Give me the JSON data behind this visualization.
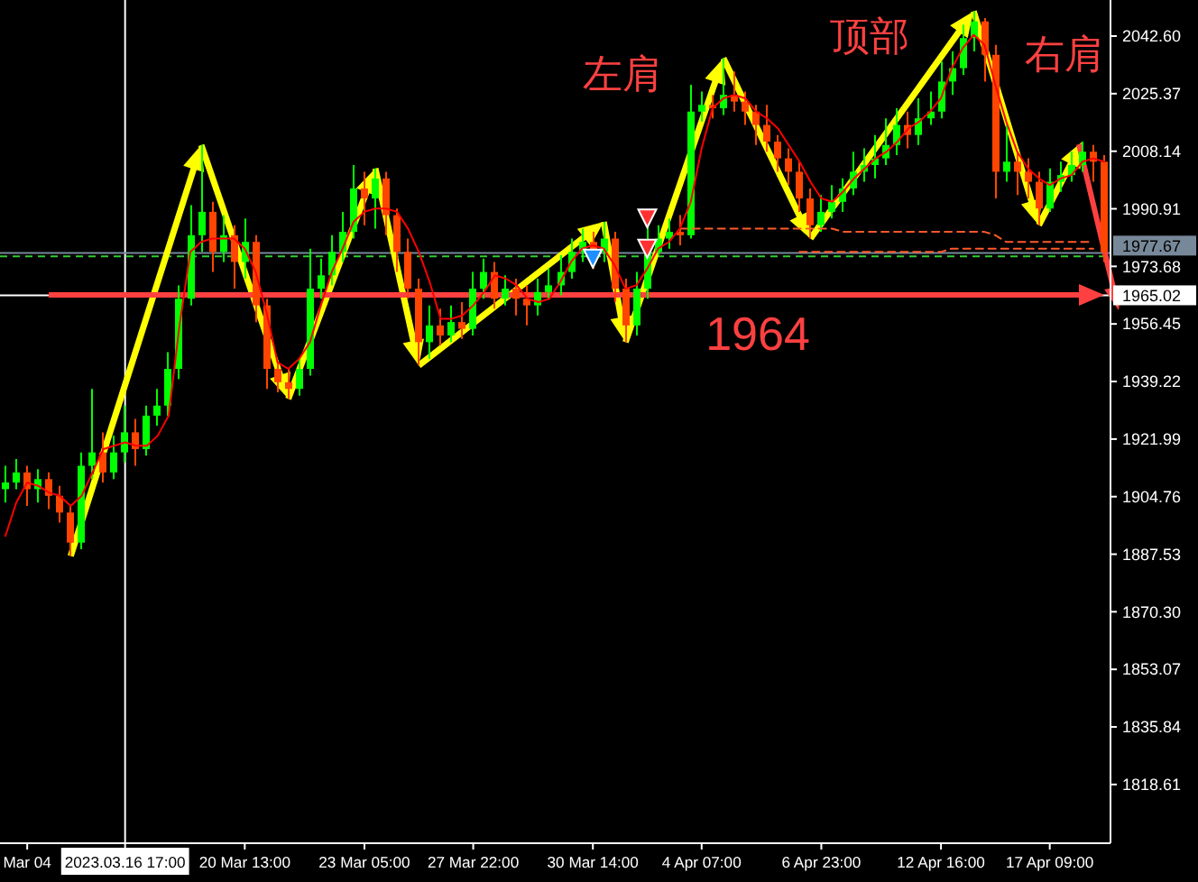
{
  "chart_data": {
    "type": "candlestick",
    "categories": [
      null,
      null,
      "Mar 04",
      null,
      null,
      null,
      null,
      null,
      null,
      null,
      null,
      "2023.03.16 17:00",
      null,
      null,
      null,
      null,
      null,
      null,
      null,
      null,
      null,
      null,
      "20 Mar 13:00",
      null,
      null,
      null,
      null,
      null,
      null,
      null,
      null,
      null,
      null,
      "23 Mar 05:00",
      null,
      null,
      null,
      null,
      null,
      null,
      null,
      null,
      null,
      "27 Mar 22:00",
      null,
      null,
      null,
      null,
      null,
      null,
      null,
      null,
      null,
      null,
      "30 Mar 14:00",
      null,
      null,
      null,
      null,
      null,
      null,
      null,
      null,
      null,
      "4 Apr 07:00",
      null,
      null,
      null,
      null,
      null,
      null,
      null,
      null,
      null,
      null,
      "6 Apr 23:00",
      null,
      null,
      null,
      null,
      null,
      null,
      null,
      null,
      null,
      null,
      "12 Apr 16:00",
      null,
      null,
      null,
      null,
      null,
      null,
      null,
      null,
      null,
      "17 Apr 09:00",
      null,
      null,
      null,
      null,
      null
    ],
    "ohlc": [
      [
        1907,
        1914,
        1903,
        1909
      ],
      [
        1909,
        1916,
        1907,
        1912
      ],
      [
        1912,
        1914,
        1902,
        1907
      ],
      [
        1907,
        1913,
        1903,
        1910
      ],
      [
        1910,
        1912,
        1901,
        1905
      ],
      [
        1905,
        1908,
        1897,
        1900
      ],
      [
        1900,
        1902,
        1887,
        1891
      ],
      [
        1891,
        1918,
        1889,
        1914
      ],
      [
        1914,
        1937,
        1910,
        1918
      ],
      [
        1918,
        1924,
        1909,
        1912
      ],
      [
        1912,
        1923,
        1910,
        1918
      ],
      [
        1918,
        1932,
        1915,
        1924
      ],
      [
        1924,
        1928,
        1914,
        1919
      ],
      [
        1919,
        1932,
        1917,
        1929
      ],
      [
        1929,
        1937,
        1926,
        1932
      ],
      [
        1932,
        1948,
        1929,
        1943
      ],
      [
        1943,
        1968,
        1940,
        1964
      ],
      [
        1964,
        1992,
        1962,
        1983
      ],
      [
        1983,
        2010,
        1978,
        1990
      ],
      [
        1990,
        1993,
        1972,
        1978
      ],
      [
        1978,
        1989,
        1975,
        1983
      ],
      [
        1983,
        1986,
        1967,
        1975
      ],
      [
        1975,
        1988,
        1970,
        1981
      ],
      [
        1981,
        1983,
        1957,
        1962
      ],
      [
        1962,
        1964,
        1937,
        1943
      ],
      [
        1943,
        1945,
        1936,
        1939
      ],
      [
        1939,
        1943,
        1934,
        1937
      ],
      [
        1937,
        1946,
        1935,
        1943
      ],
      [
        1943,
        1979,
        1941,
        1967
      ],
      [
        1967,
        1976,
        1964,
        1971
      ],
      [
        1971,
        1983,
        1968,
        1978
      ],
      [
        1978,
        1990,
        1975,
        1984
      ],
      [
        1984,
        2004,
        1982,
        1997
      ],
      [
        1997,
        2002,
        1986,
        1994
      ],
      [
        1994,
        2003,
        1985,
        2000
      ],
      [
        2000,
        2002,
        1983,
        1989
      ],
      [
        1989,
        1991,
        1972,
        1978
      ],
      [
        1978,
        1982,
        1964,
        1967
      ],
      [
        1967,
        1970,
        1944,
        1951
      ],
      [
        1951,
        1962,
        1946,
        1956
      ],
      [
        1956,
        1961,
        1950,
        1953
      ],
      [
        1953,
        1962,
        1951,
        1957
      ],
      [
        1957,
        1963,
        1952,
        1955
      ],
      [
        1955,
        1972,
        1953,
        1967
      ],
      [
        1967,
        1976,
        1964,
        1972
      ],
      [
        1972,
        1975,
        1961,
        1964
      ],
      [
        1964,
        1971,
        1962,
        1967
      ],
      [
        1967,
        1970,
        1959,
        1964
      ],
      [
        1964,
        1968,
        1956,
        1962
      ],
      [
        1962,
        1970,
        1959,
        1966
      ],
      [
        1966,
        1973,
        1964,
        1968
      ],
      [
        1968,
        1977,
        1965,
        1972
      ],
      [
        1972,
        1982,
        1970,
        1978
      ],
      [
        1978,
        1985,
        1975,
        1981
      ],
      [
        1981,
        1984,
        1973,
        1978
      ],
      [
        1978,
        1987,
        1975,
        1982
      ],
      [
        1982,
        1984,
        1963,
        1967
      ],
      [
        1967,
        1970,
        1951,
        1956
      ],
      [
        1956,
        1972,
        1953,
        1967
      ],
      [
        1967,
        1986,
        1964,
        1978
      ],
      [
        1978,
        1986,
        1977,
        1982
      ],
      [
        1982,
        1988,
        1979,
        1984
      ],
      [
        1984,
        1989,
        1980,
        1983
      ],
      [
        1983,
        2028,
        1982,
        2020
      ],
      [
        2020,
        2026,
        2017,
        2022
      ],
      [
        2022,
        2025,
        2018,
        2021
      ],
      [
        2021,
        2036,
        2019,
        2025
      ],
      [
        2025,
        2032,
        2020,
        2023
      ],
      [
        2023,
        2026,
        2016,
        2020
      ],
      [
        2020,
        2022,
        2010,
        2016
      ],
      [
        2016,
        2022,
        2008,
        2011
      ],
      [
        2011,
        2013,
        2002,
        2006
      ],
      [
        2006,
        2009,
        1998,
        2002
      ],
      [
        2002,
        2005,
        1990,
        1994
      ],
      [
        1994,
        1997,
        1982,
        1986
      ],
      [
        1986,
        1995,
        1984,
        1990
      ],
      [
        1990,
        1998,
        1988,
        1993
      ],
      [
        1993,
        2000,
        1990,
        1997
      ],
      [
        1997,
        2008,
        1995,
        2002
      ],
      [
        2002,
        2009,
        1999,
        2004
      ],
      [
        2004,
        2013,
        2000,
        2006
      ],
      [
        2006,
        2018,
        2004,
        2010
      ],
      [
        2010,
        2021,
        2007,
        2016
      ],
      [
        2016,
        2020,
        2009,
        2013
      ],
      [
        2013,
        2024,
        2010,
        2018
      ],
      [
        2018,
        2026,
        2016,
        2020
      ],
      [
        2020,
        2035,
        2018,
        2029
      ],
      [
        2029,
        2038,
        2025,
        2033
      ],
      [
        2033,
        2046,
        2031,
        2042
      ],
      [
        2042,
        2050,
        2038,
        2047
      ],
      [
        2047,
        2048,
        2029,
        2037
      ],
      [
        2037,
        2040,
        1994,
        2002
      ],
      [
        2002,
        2016,
        1999,
        2005
      ],
      [
        2005,
        2008,
        1995,
        2002
      ],
      [
        2002,
        2006,
        1994,
        1999
      ],
      [
        1999,
        2002,
        1986,
        1991
      ],
      [
        1991,
        2003,
        1990,
        1999
      ],
      [
        1999,
        2005,
        1996,
        2001
      ],
      [
        2001,
        2008,
        1999,
        2004
      ],
      [
        2004,
        2011,
        2002,
        2008
      ],
      [
        2008,
        2010,
        1999,
        2005
      ],
      [
        2005,
        2007,
        1975,
        1978
      ]
    ],
    "colors": [
      "#00ff00",
      "#00ff00",
      "#ff4500",
      "#00ff00",
      "#ff4500",
      "#ff4500",
      "#ff4500",
      "#00ff00",
      "#00ff00",
      "#ff4500",
      "#00ff00",
      "#00ff00",
      "#ff4500",
      "#00ff00",
      "#00ff00",
      "#00ff00",
      "#00ff00",
      "#00ff00",
      "#00ff00",
      "#ff4500",
      "#00ff00",
      "#ff4500",
      "#00ff00",
      "#ff4500",
      "#ff4500",
      "#ff4500",
      "#ff4500",
      "#00ff00",
      "#00ff00",
      "#00ff00",
      "#00ff00",
      "#00ff00",
      "#00ff00",
      "#ff4500",
      "#00ff00",
      "#ff4500",
      "#ff4500",
      "#ff4500",
      "#ff4500",
      "#00ff00",
      "#ff4500",
      "#00ff00",
      "#ff4500",
      "#00ff00",
      "#00ff00",
      "#ff4500",
      "#00ff00",
      "#ff4500",
      "#ff4500",
      "#00ff00",
      "#00ff00",
      "#00ff00",
      "#00ff00",
      "#00ff00",
      "#ff4500",
      "#00ff00",
      "#ff4500",
      "#ff4500",
      "#00ff00",
      "#00ff00",
      "#00ff00",
      "#00ff00",
      "#ff4500",
      "#00ff00",
      "#00ff00",
      "#ff4500",
      "#00ff00",
      "#ff4500",
      "#ff4500",
      "#ff4500",
      "#ff4500",
      "#ff4500",
      "#ff4500",
      "#ff4500",
      "#ff4500",
      "#00ff00",
      "#00ff00",
      "#00ff00",
      "#00ff00",
      "#00ff00",
      "#00ff00",
      "#00ff00",
      "#00ff00",
      "#ff4500",
      "#00ff00",
      "#00ff00",
      "#00ff00",
      "#00ff00",
      "#00ff00",
      "#00ff00",
      "#ff4500",
      "#ff4500",
      "#00ff00",
      "#ff4500",
      "#ff4500",
      "#ff4500",
      "#00ff00",
      "#00ff00",
      "#00ff00",
      "#00ff00",
      "#ff4500",
      "#ff4500"
    ],
    "series": [
      {
        "type": "line",
        "color": "#ff5a2a",
        "line_style": "dashed",
        "values": [
          null,
          null,
          null,
          null,
          null,
          null,
          null,
          null,
          null,
          null,
          null,
          null,
          null,
          null,
          null,
          null,
          null,
          null,
          null,
          null,
          null,
          null,
          null,
          null,
          null,
          null,
          null,
          null,
          null,
          null,
          null,
          null,
          null,
          null,
          null,
          null,
          null,
          null,
          null,
          null,
          null,
          null,
          null,
          null,
          null,
          null,
          null,
          null,
          null,
          null,
          null,
          null,
          null,
          null,
          null,
          null,
          null,
          null,
          null,
          null,
          null,
          null,
          1985,
          1985,
          1985,
          1985,
          1985,
          1985,
          1985,
          1985,
          1985,
          1985,
          1985,
          1985,
          1985,
          1985,
          1985,
          1984,
          1984,
          1984,
          1984,
          1984,
          1984,
          1984,
          1984,
          1984,
          1984,
          1984,
          1984,
          1984,
          1984,
          1983,
          1981,
          1981,
          1981,
          1981,
          1981,
          1981,
          1981,
          1981,
          1981,
          null
        ]
      },
      {
        "type": "line",
        "color": "#ff5a2a",
        "line_style": "dashed",
        "values": [
          null,
          null,
          null,
          null,
          null,
          null,
          null,
          null,
          null,
          null,
          null,
          null,
          null,
          null,
          null,
          null,
          null,
          null,
          null,
          null,
          null,
          null,
          null,
          null,
          null,
          null,
          null,
          null,
          null,
          null,
          null,
          null,
          null,
          null,
          null,
          null,
          null,
          null,
          null,
          null,
          null,
          null,
          null,
          null,
          null,
          null,
          null,
          null,
          null,
          null,
          null,
          null,
          null,
          null,
          null,
          null,
          null,
          null,
          null,
          null,
          null,
          null,
          null,
          null,
          null,
          null,
          null,
          null,
          null,
          null,
          null,
          null,
          null,
          1978,
          1978,
          1978,
          1978,
          1978,
          1978,
          1978,
          1978,
          1978,
          1978,
          1978,
          1978,
          1978,
          1978,
          1979,
          1979,
          1979,
          1979,
          1979,
          1979,
          1979,
          1979,
          1979,
          1979,
          1979,
          1979,
          1979,
          1979,
          null
        ]
      },
      {
        "type": "line",
        "color": "#ff0000",
        "values": [
          1893,
          1903,
          1909,
          1908,
          1906,
          1905,
          1902,
          1905,
          1912,
          1919,
          1920,
          1921,
          1920,
          1920,
          1923,
          1929,
          1956,
          1978,
          1981,
          1982,
          1982,
          1982,
          1979,
          1972,
          1960,
          1945,
          1943,
          1946,
          1951,
          1962,
          1972,
          1979,
          1987,
          1990,
          1991,
          1991,
          1990,
          1985,
          1978,
          1969,
          1958,
          1958,
          1959,
          1962,
          1966,
          1971,
          1970,
          1968,
          1964,
          1963,
          1964,
          1969,
          1975,
          1979,
          1980,
          1979,
          1974,
          1967,
          1968,
          1973,
          1979,
          1981,
          1985,
          1993,
          2009,
          2021,
          2024,
          2025,
          2024,
          2020,
          2018,
          2015,
          2010,
          2005,
          1999,
          1994,
          1993,
          1996,
          2000,
          2003,
          2006,
          2008,
          2011,
          2015,
          2017,
          2020,
          2024,
          2033,
          2039,
          2043,
          2040,
          2028,
          2017,
          2008,
          2003,
          2000,
          1998,
          2000,
          2001,
          2005,
          2006,
          2005
        ]
      },
      {
        "type": "scatter",
        "color": "#ff3030",
        "marker": "triangle",
        "values": [
          null,
          null,
          null,
          null,
          null,
          null,
          null,
          null,
          null,
          null,
          null,
          null,
          null,
          null,
          null,
          null,
          null,
          null,
          null,
          null,
          null,
          null,
          null,
          null,
          null,
          null,
          null,
          null,
          null,
          null,
          null,
          null,
          null,
          null,
          null,
          null,
          null,
          null,
          null,
          null,
          null,
          null,
          null,
          null,
          null,
          null,
          null,
          null,
          null,
          null,
          null,
          null,
          null,
          null,
          null,
          null,
          null,
          null,
          null,
          1988,
          null,
          null,
          null,
          null,
          null,
          null,
          null,
          null,
          null,
          null,
          null,
          null,
          null,
          null,
          null,
          null,
          null,
          null,
          null,
          null,
          null,
          null,
          null,
          null,
          null,
          null,
          null,
          null,
          null,
          null,
          null,
          null,
          null,
          null,
          null,
          null,
          null,
          null,
          null,
          null,
          null,
          null
        ]
      },
      {
        "type": "scatter",
        "color": "#ff3030",
        "marker": "triangle",
        "values": [
          null,
          null,
          null,
          null,
          null,
          null,
          null,
          null,
          null,
          null,
          null,
          null,
          null,
          null,
          null,
          null,
          null,
          null,
          null,
          null,
          null,
          null,
          null,
          null,
          null,
          null,
          null,
          null,
          null,
          null,
          null,
          null,
          null,
          null,
          null,
          null,
          null,
          null,
          null,
          null,
          null,
          null,
          null,
          null,
          null,
          null,
          null,
          null,
          null,
          null,
          null,
          null,
          null,
          null,
          null,
          null,
          null,
          null,
          null,
          1979,
          null,
          null,
          null,
          null,
          null,
          null,
          null,
          null,
          null,
          null,
          null,
          null,
          null,
          null,
          null,
          null,
          null,
          null,
          null,
          null,
          null,
          null,
          null,
          null,
          null,
          null,
          null,
          null,
          null,
          null,
          null,
          null,
          null,
          null,
          null,
          null,
          null,
          null,
          null,
          null,
          null,
          null
        ]
      },
      {
        "type": "scatter",
        "color": "#1e90ff",
        "marker": "triangle",
        "values": [
          null,
          null,
          null,
          null,
          null,
          null,
          null,
          null,
          null,
          null,
          null,
          null,
          null,
          null,
          null,
          null,
          null,
          null,
          null,
          null,
          null,
          null,
          null,
          null,
          null,
          null,
          null,
          null,
          null,
          null,
          null,
          null,
          null,
          null,
          null,
          null,
          null,
          null,
          null,
          null,
          null,
          null,
          null,
          null,
          null,
          null,
          null,
          null,
          null,
          null,
          null,
          null,
          null,
          null,
          1976,
          null,
          null,
          null,
          null,
          null,
          null,
          null,
          null,
          null,
          null,
          null,
          null,
          null,
          null,
          null,
          null,
          null,
          null,
          null,
          null,
          null,
          null,
          null,
          null,
          null,
          null,
          null,
          null,
          null,
          null,
          null,
          null,
          null,
          null,
          null,
          null,
          null,
          null,
          null,
          null,
          null,
          null,
          null,
          null,
          null,
          null,
          null
        ]
      }
    ],
    "ylim": [
      1801.3,
      2053.4
    ],
    "yticks": [
      {
        "value": 2042.6,
        "label": "2042.60"
      },
      2025.37,
      2008.14,
      1990.91,
      1973.68,
      1956.45,
      1939.22,
      1921.99,
      1904.76,
      1887.53,
      {
        "value": 1870.3,
        "label": "1870.30"
      },
      1853.07,
      1835.84,
      1818.61
    ],
    "ref_lines": [
      {
        "axis": "x",
        "value": "2023.03.16 17:00",
        "color": "#ffffff"
      },
      {
        "axis": "y",
        "value": 1977.67,
        "label": "1977.67",
        "color": "#778899"
      },
      {
        "axis": "y",
        "value": 1976.7,
        "color": "#32cd32",
        "line_style": "dashed"
      },
      {
        "axis": "y",
        "value": 1965.02,
        "label": "1965.02",
        "color": "#ffffff"
      }
    ],
    "annotations": [
      "左肩",
      "顶部",
      "右肩",
      "1964"
    ]
  }
}
